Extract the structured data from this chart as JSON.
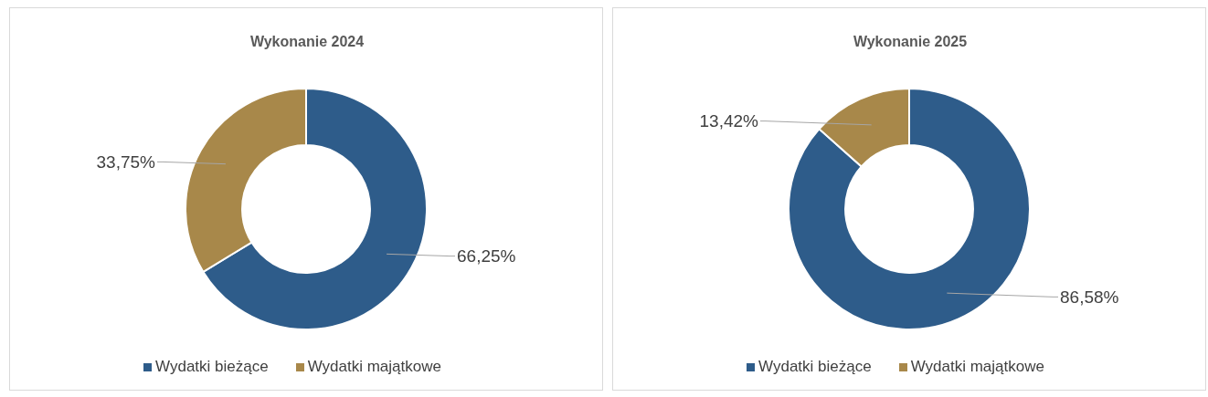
{
  "chart_data": [
    {
      "type": "donut",
      "title": "Wykonanie 2024",
      "categories": [
        "Wydatki bieżące",
        "Wydatki majątkowe"
      ],
      "values": [
        66.25,
        33.75
      ],
      "colors": [
        "#2e5c8a",
        "#a8884a"
      ],
      "value_labels": [
        "66,25%",
        "33,75%"
      ],
      "legend": "bottom"
    },
    {
      "type": "donut",
      "title": "Wykonanie 2025",
      "categories": [
        "Wydatki bieżące",
        "Wydatki majątkowe"
      ],
      "values": [
        86.58,
        13.42
      ],
      "colors": [
        "#2e5c8a",
        "#a8884a"
      ],
      "value_labels": [
        "86,58%",
        "13,42%"
      ],
      "legend": "bottom"
    }
  ]
}
